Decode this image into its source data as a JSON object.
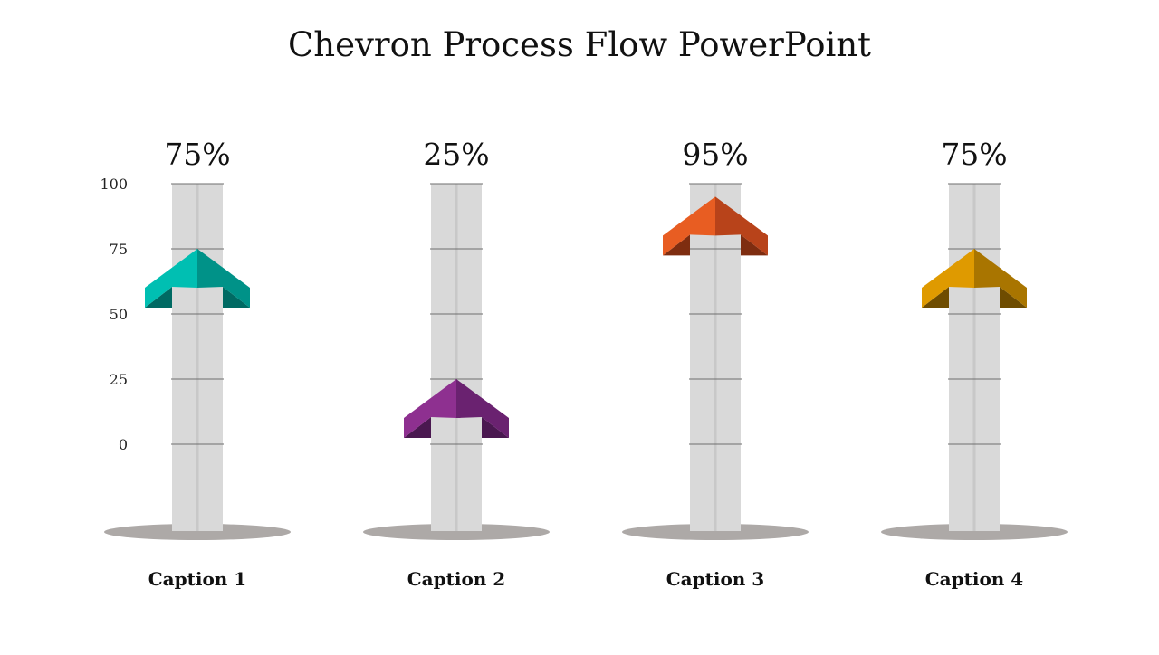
{
  "slide": {
    "title": "Chevron Process Flow PowerPoint"
  },
  "chart_data": {
    "type": "bar",
    "title": "Chevron Process Flow PowerPoint",
    "categories": [
      "Caption 1",
      "Caption 2",
      "Caption 3",
      "Caption 4"
    ],
    "values": [
      75,
      25,
      95,
      75
    ],
    "value_labels": [
      "75%",
      "25%",
      "95%",
      "75%"
    ],
    "y_ticks": [
      0,
      25,
      50,
      75,
      100
    ],
    "y_tick_labels": [
      "0",
      "25",
      "50",
      "75",
      "100"
    ],
    "ylim": [
      0,
      100
    ],
    "grid": true,
    "colors": [
      "#00BFB2",
      "#8E3090",
      "#E85D22",
      "#DF9A00"
    ],
    "shade_colors": [
      "#009288",
      "#6A2270",
      "#B8431A",
      "#A97500"
    ],
    "dark_colors": [
      "#006A63",
      "#4A1850",
      "#7E2D10",
      "#6E4C00"
    ],
    "legend": "none"
  }
}
